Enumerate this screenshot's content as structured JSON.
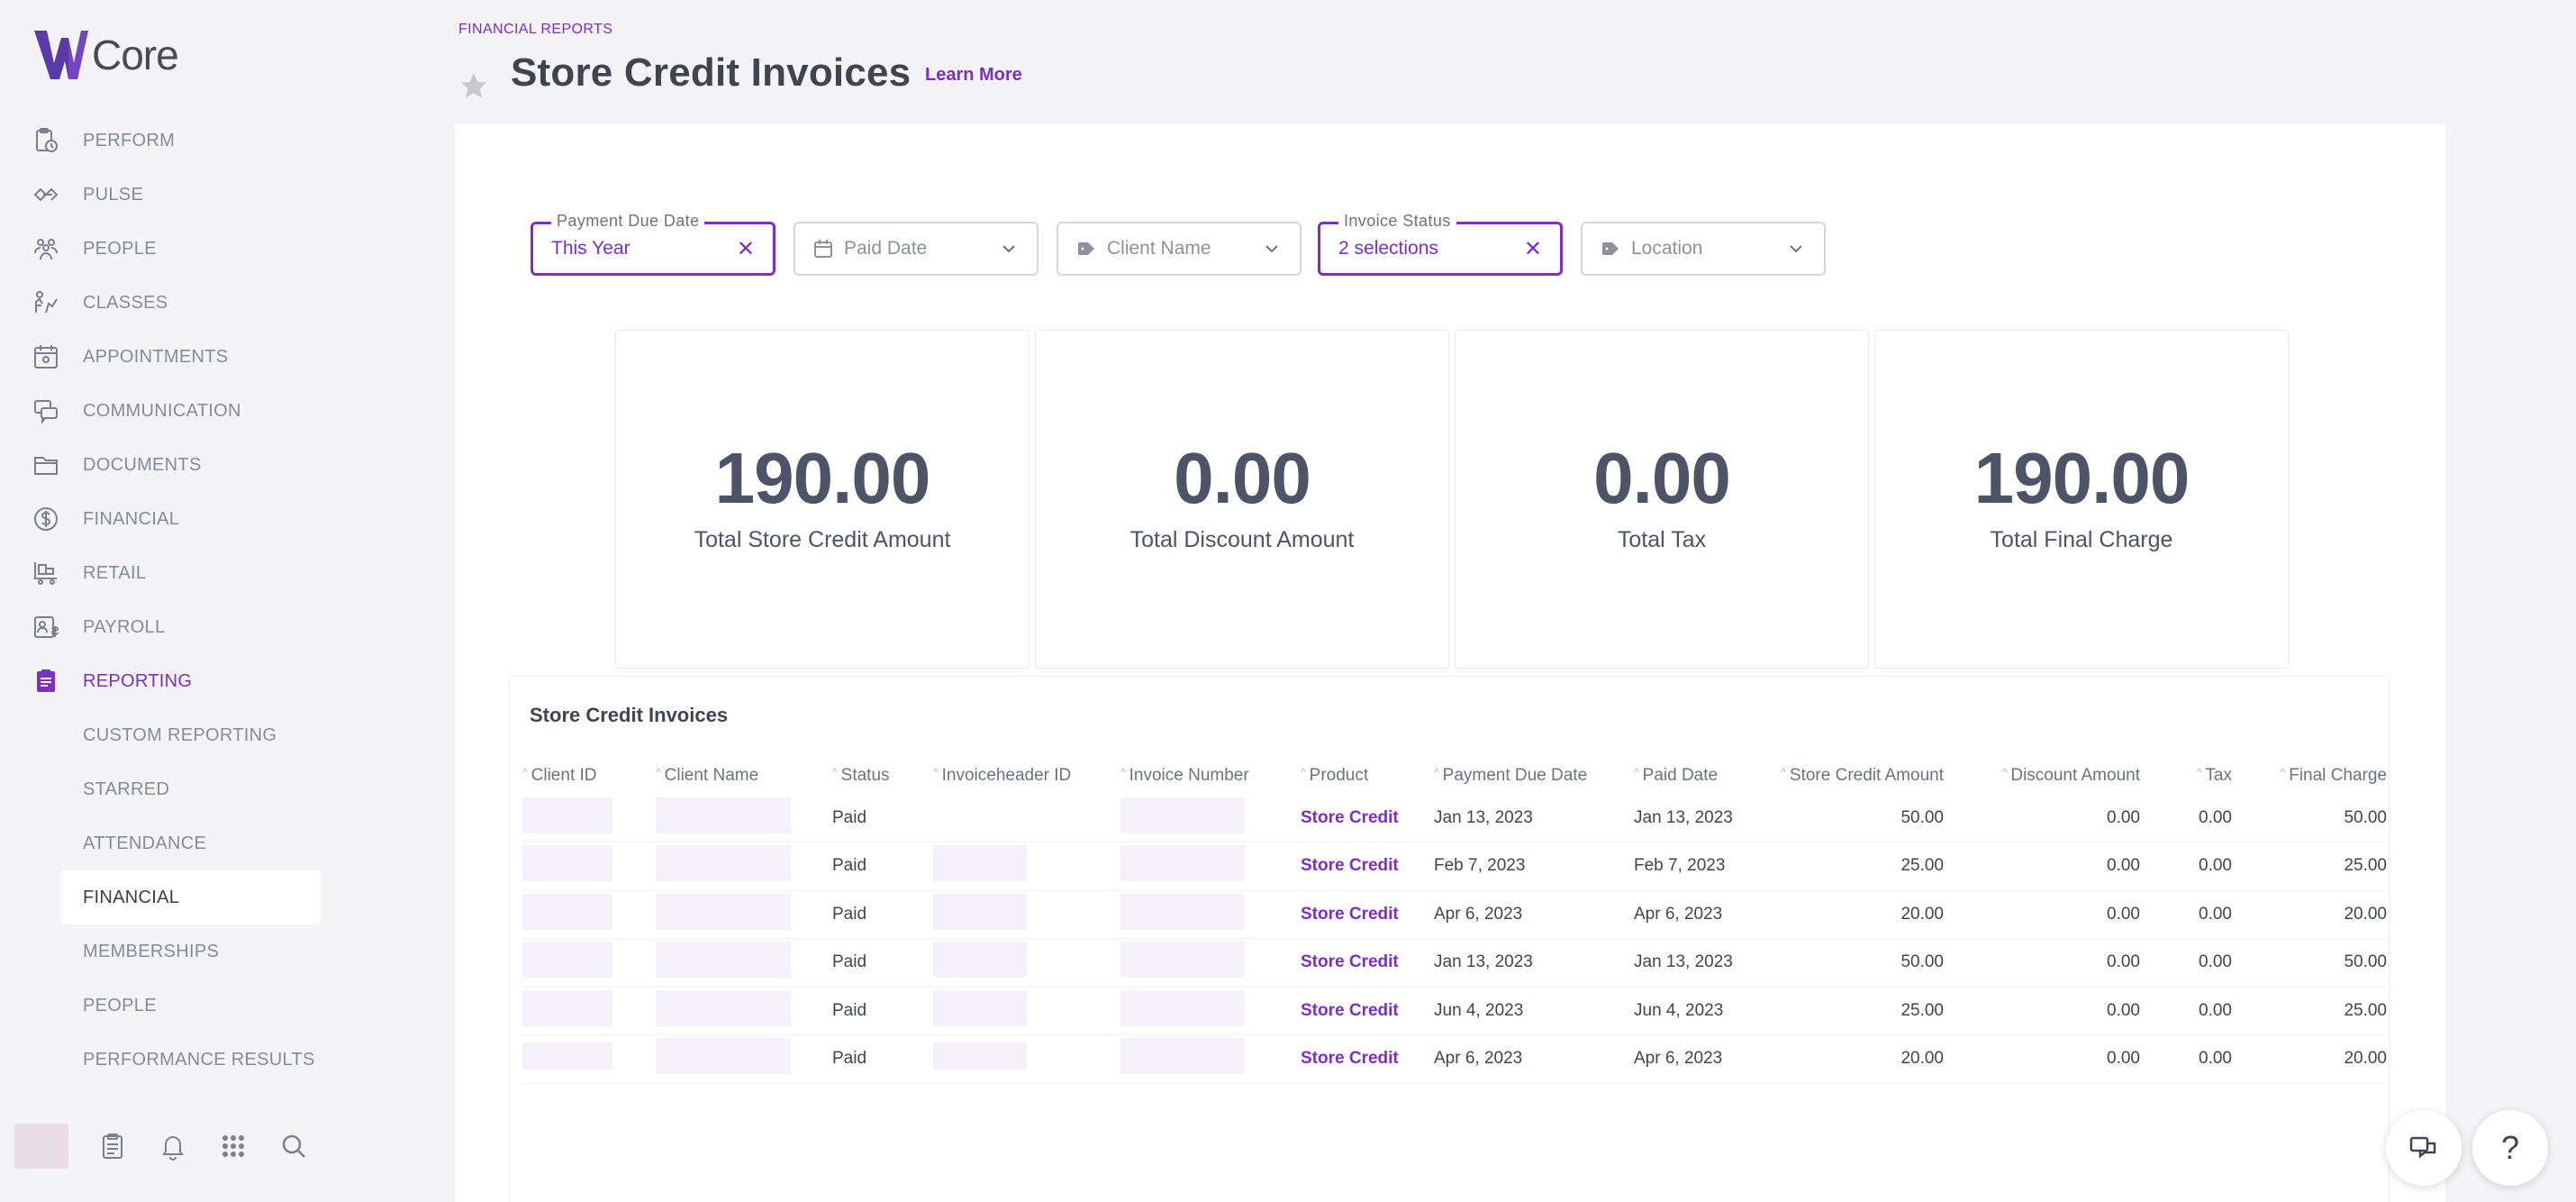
{
  "app": {
    "logo_text": "Core"
  },
  "nav": {
    "items": [
      {
        "label": "PERFORM",
        "icon": "clipboard-clock-icon"
      },
      {
        "label": "PULSE",
        "icon": "pulse-icon"
      },
      {
        "label": "PEOPLE",
        "icon": "people-icon"
      },
      {
        "label": "CLASSES",
        "icon": "classes-icon"
      },
      {
        "label": "APPOINTMENTS",
        "icon": "calendar-icon"
      },
      {
        "label": "COMMUNICATION",
        "icon": "chat-icon"
      },
      {
        "label": "DOCUMENTS",
        "icon": "folder-icon"
      },
      {
        "label": "FINANCIAL",
        "icon": "dollar-icon"
      },
      {
        "label": "RETAIL",
        "icon": "cart-icon"
      },
      {
        "label": "PAYROLL",
        "icon": "payroll-icon"
      },
      {
        "label": "REPORTING",
        "icon": "report-icon"
      }
    ],
    "sub_items": [
      "CUSTOM REPORTING",
      "STARRED",
      "ATTENDANCE",
      "FINANCIAL",
      "MEMBERSHIPS",
      "PEOPLE",
      "PERFORMANCE RESULTS"
    ],
    "active_item": "REPORTING",
    "selected_sub": "FINANCIAL"
  },
  "header": {
    "breadcrumb": "FINANCIAL REPORTS",
    "title": "Store Credit Invoices",
    "learn_more": "Learn More"
  },
  "filters": {
    "payment_due": {
      "label": "Payment Due Date",
      "value": "This Year"
    },
    "paid_date": {
      "placeholder": "Paid Date"
    },
    "client_name": {
      "placeholder": "Client Name"
    },
    "invoice_status": {
      "label": "Invoice Status",
      "value": "2 selections"
    },
    "location": {
      "placeholder": "Location"
    }
  },
  "stats": [
    {
      "value": "190.00",
      "label": "Total Store Credit Amount"
    },
    {
      "value": "0.00",
      "label": "Total Discount Amount"
    },
    {
      "value": "0.00",
      "label": "Total Tax"
    },
    {
      "value": "190.00",
      "label": "Total Final Charge"
    }
  ],
  "table": {
    "title": "Store Credit Invoices",
    "columns": [
      "Client ID",
      "Client Name",
      "Status",
      "Invoiceheader ID",
      "Invoice Number",
      "Product",
      "Payment Due Date",
      "Paid Date",
      "Store Credit Amount",
      "Discount Amount",
      "Tax",
      "Final Charge"
    ],
    "rows": [
      [
        "",
        "",
        "Paid",
        "",
        "",
        "Store Credit",
        "Jan 13, 2023",
        "Jan 13, 2023",
        "50.00",
        "0.00",
        "0.00",
        "50.00"
      ],
      [
        "",
        "",
        "Paid",
        "",
        "",
        "Store Credit",
        "Feb 7, 2023",
        "Feb 7, 2023",
        "25.00",
        "0.00",
        "0.00",
        "25.00"
      ],
      [
        "",
        "",
        "Paid",
        "",
        "",
        "Store Credit",
        "Apr 6, 2023",
        "Apr 6, 2023",
        "20.00",
        "0.00",
        "0.00",
        "20.00"
      ],
      [
        "",
        "",
        "Paid",
        "",
        "",
        "Store Credit",
        "Jan 13, 2023",
        "Jan 13, 2023",
        "50.00",
        "0.00",
        "0.00",
        "50.00"
      ],
      [
        "",
        "",
        "Paid",
        "",
        "",
        "Store Credit",
        "Jun 4, 2023",
        "Jun 4, 2023",
        "25.00",
        "0.00",
        "0.00",
        "25.00"
      ],
      [
        "",
        "",
        "Paid",
        "",
        "",
        "Store Credit",
        "Apr 6, 2023",
        "Apr 6, 2023",
        "20.00",
        "0.00",
        "0.00",
        "20.00"
      ]
    ]
  },
  "fabs": {
    "help_label": "?"
  },
  "colors": {
    "accent": "#7d2ec3",
    "text": "#3f4450",
    "background": "#f4f4f6"
  }
}
